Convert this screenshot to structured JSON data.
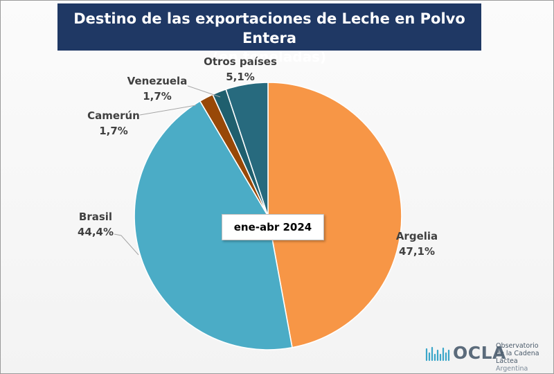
{
  "chart_data": {
    "type": "pie",
    "title": "Destino de las exportaciones de Leche en Polvo Entera",
    "subtitle": "(en toneladas)",
    "period_label": "ene-abr 2024",
    "slices": [
      {
        "name": "Argelia",
        "value": 47.1,
        "label": "47,1%",
        "color": "#f79646"
      },
      {
        "name": "Brasil",
        "value": 44.4,
        "label": "44,4%",
        "color": "#4bacc6"
      },
      {
        "name": "Camerún",
        "value": 1.7,
        "label": "1,7%",
        "color": "#984807"
      },
      {
        "name": "Venezuela",
        "value": 1.7,
        "label": "1,7%",
        "color": "#1f5f6e"
      },
      {
        "name": "Otros países",
        "value": 5.1,
        "label": "5,1%",
        "color": "#276a7e"
      }
    ]
  },
  "logo": {
    "name": "OCLA",
    "line1": "Observatorio",
    "line2": "de la Cadena Láctea",
    "line3": "Argentina"
  }
}
